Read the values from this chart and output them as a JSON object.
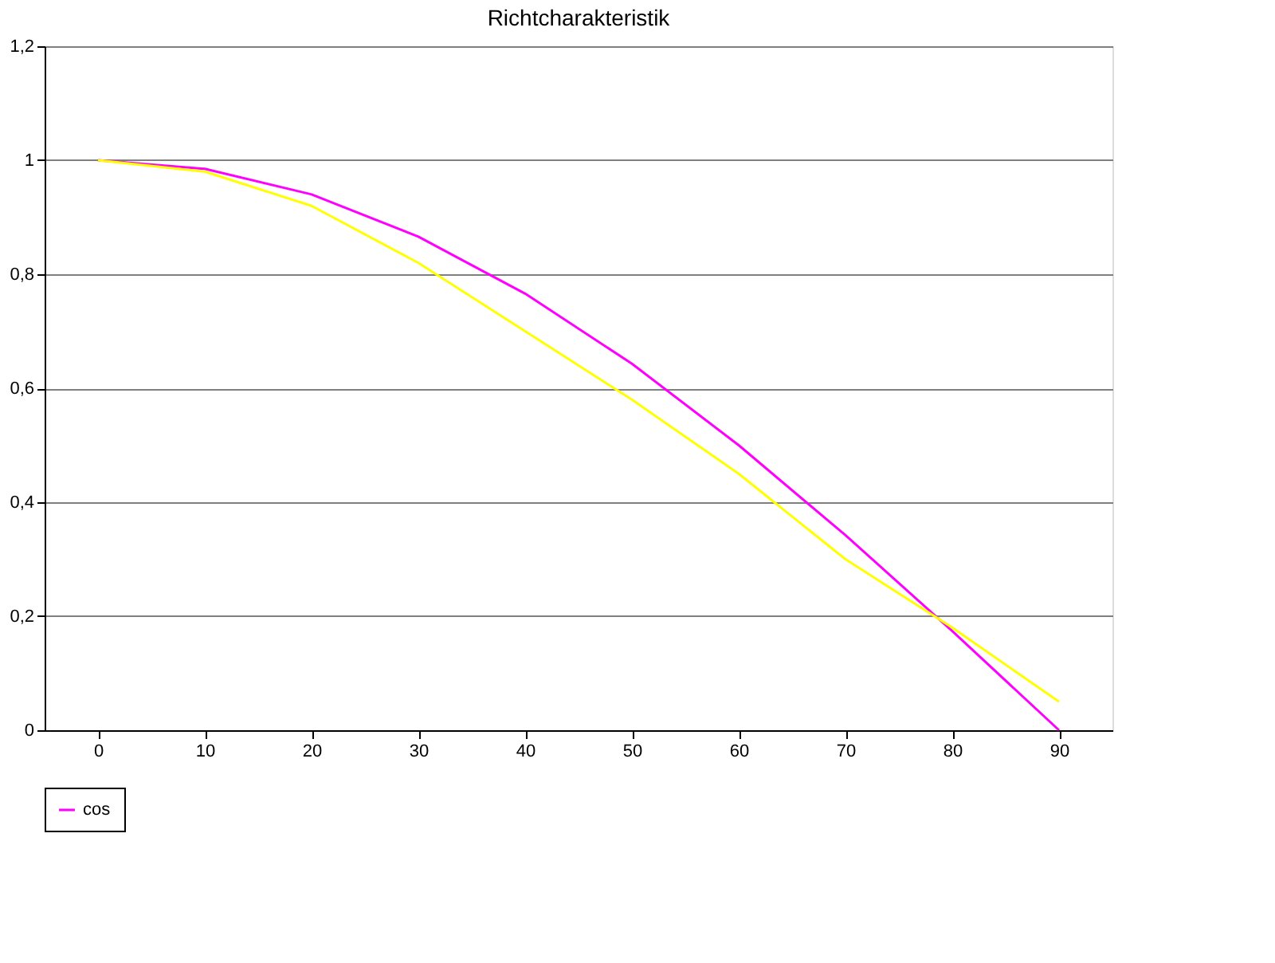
{
  "chart_data": {
    "type": "line",
    "title": "Richtcharakteristik",
    "categories": [
      "0",
      "10",
      "20",
      "30",
      "40",
      "50",
      "60",
      "70",
      "80",
      "90"
    ],
    "series": [
      {
        "name": "cos",
        "color": "#ff00ff",
        "values": [
          1,
          0.985,
          0.94,
          0.866,
          0.766,
          0.643,
          0.5,
          0.342,
          0.174,
          0
        ]
      },
      {
        "color": "#ffff00",
        "values": [
          1,
          0.98,
          0.92,
          0.82,
          0.7,
          0.58,
          0.45,
          0.3,
          0.18,
          0.05
        ]
      }
    ],
    "ylim": [
      0,
      1.2
    ],
    "yticks": [
      0,
      {
        "value": 0.2,
        "label": "0,2"
      },
      {
        "value": 0.4,
        "label": "0,4"
      },
      {
        "value": 0.6,
        "label": "0,6"
      },
      {
        "value": 0.8,
        "label": "0,8"
      },
      1,
      {
        "value": 1.2,
        "label": "1,2"
      }
    ],
    "grid": "y",
    "legend": "bottom left",
    "marker": "none",
    "line_style": "solid"
  }
}
